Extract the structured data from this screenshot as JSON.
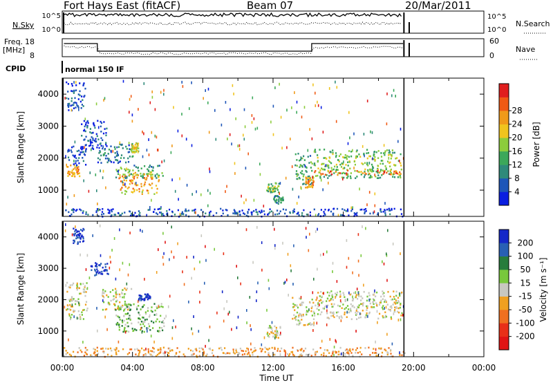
{
  "header": {
    "radar": "Fort Hays East (fitACF)",
    "beam": "Beam 07",
    "date": "20/Mar/2011"
  },
  "panels": {
    "nsky_label": "N.Sky",
    "nsky_ticks": [
      "10^5",
      "10^0"
    ],
    "nsearch_label": "N.Search",
    "nsearch_ticks": [
      "10^5",
      "10^0"
    ],
    "freq_label_1": "Freq.",
    "freq_label_2": "[MHz]",
    "freq_ticks": [
      "18",
      "8"
    ],
    "nave_label": "Nave",
    "nave_ticks": [
      "60",
      "0"
    ],
    "cpid_label": "CPID",
    "cpid_value": "normal 150 IF"
  },
  "chart_data": [
    {
      "type": "heatmap",
      "panel": "power",
      "xlabel": "",
      "ylabel": "Slant Range [km]",
      "colorbar_label": "Power [dB]",
      "xlim": [
        "00:00",
        "24:00"
      ],
      "ylim": [
        180,
        4500
      ],
      "x_ticks": [
        "00:00",
        "04:00",
        "08:00",
        "12:00",
        "16:00",
        "20:00",
        "00:00"
      ],
      "y_ticks": [
        1000,
        2000,
        3000,
        4000
      ],
      "colorbar_ticks": [
        4,
        8,
        12,
        16,
        20,
        24,
        28
      ],
      "colorbar_colors": [
        "#0a1ee0",
        "#1e56b8",
        "#2f8a7a",
        "#3ca85a",
        "#8ccc3c",
        "#f0c41e",
        "#f09a1a",
        "#f05a14",
        "#e01e1e"
      ],
      "regions": [
        {
          "t0": 0.2,
          "t1": 1.3,
          "r0": 3500,
          "r1": 4400,
          "level": 1
        },
        {
          "t0": 0.2,
          "t1": 1.0,
          "r0": 1450,
          "r1": 1800,
          "level": 6
        },
        {
          "t0": 0.3,
          "t1": 1.4,
          "r0": 1800,
          "r1": 2400,
          "level": 1
        },
        {
          "t0": 1.0,
          "t1": 2.5,
          "r0": 2300,
          "r1": 3200,
          "level": 1
        },
        {
          "t0": 2.0,
          "t1": 4.0,
          "r0": 1850,
          "r1": 2500,
          "level": 2
        },
        {
          "t0": 3.0,
          "t1": 5.8,
          "r0": 1400,
          "r1": 1800,
          "level": 3
        },
        {
          "t0": 3.2,
          "t1": 5.5,
          "r0": 900,
          "r1": 1600,
          "level": 6
        },
        {
          "t0": 3.9,
          "t1": 4.3,
          "r0": 2200,
          "r1": 2500,
          "level": 5
        },
        {
          "t0": 11.6,
          "t1": 12.3,
          "r0": 950,
          "r1": 1250,
          "level": 4
        },
        {
          "t0": 12.0,
          "t1": 12.6,
          "r0": 600,
          "r1": 850,
          "level": 3
        },
        {
          "t0": 13.2,
          "t1": 14.2,
          "r0": 1200,
          "r1": 2200,
          "level": 3
        },
        {
          "t0": 13.8,
          "t1": 14.3,
          "r0": 1100,
          "r1": 1450,
          "level": 6
        },
        {
          "t0": 14.3,
          "t1": 19.3,
          "r0": 1400,
          "r1": 2300,
          "level": 4
        },
        {
          "t0": 14.3,
          "t1": 19.3,
          "r0": 1500,
          "r1": 1650,
          "level": 7
        },
        {
          "t0": 0.0,
          "t1": 19.5,
          "r0": 200,
          "r1": 450,
          "level": 1
        }
      ]
    },
    {
      "type": "heatmap",
      "panel": "velocity",
      "xlabel": "Time UT",
      "ylabel": "Slant Range [km]",
      "colorbar_label": "Velocity [m s⁻¹]",
      "xlim": [
        "00:00",
        "24:00"
      ],
      "ylim": [
        180,
        4500
      ],
      "x_ticks": [
        "00:00",
        "04:00",
        "08:00",
        "12:00",
        "16:00",
        "20:00",
        "00:00"
      ],
      "y_ticks": [
        1000,
        2000,
        3000,
        4000
      ],
      "colorbar_ticks": [
        200,
        100,
        50,
        15,
        -15,
        -50,
        -100,
        -200
      ],
      "colorbar_colors": [
        "#1428c8",
        "#2860b4",
        "#287c3c",
        "#78c83c",
        "#c8c8c0",
        "#f0a020",
        "#f07020",
        "#e83018",
        "#e01414"
      ],
      "regions": [
        {
          "t0": 0.2,
          "t1": 1.4,
          "r0": 1400,
          "r1": 2600,
          "level": 4
        },
        {
          "t0": 0.6,
          "t1": 1.2,
          "r0": 3800,
          "r1": 4300,
          "level": 0
        },
        {
          "t0": 1.6,
          "t1": 2.6,
          "r0": 2800,
          "r1": 3200,
          "level": 0
        },
        {
          "t0": 2.2,
          "t1": 3.9,
          "r0": 1700,
          "r1": 2400,
          "level": 4
        },
        {
          "t0": 3.0,
          "t1": 5.8,
          "r0": 1000,
          "r1": 1900,
          "level": 3
        },
        {
          "t0": 4.3,
          "t1": 5.0,
          "r0": 2000,
          "r1": 2200,
          "level": 0
        },
        {
          "t0": 11.6,
          "t1": 12.4,
          "r0": 800,
          "r1": 1200,
          "level": 4
        },
        {
          "t0": 13.0,
          "t1": 14.3,
          "r0": 1200,
          "r1": 2100,
          "level": 4
        },
        {
          "t0": 14.3,
          "t1": 19.3,
          "r0": 1400,
          "r1": 2300,
          "level": 4
        },
        {
          "t0": 0.0,
          "t1": 19.5,
          "r0": 200,
          "r1": 500,
          "level": 5
        }
      ]
    }
  ]
}
